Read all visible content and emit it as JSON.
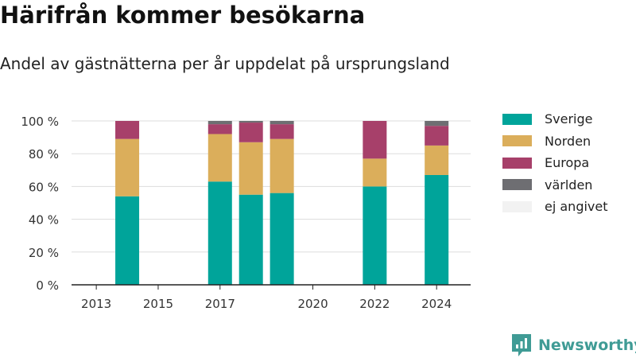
{
  "title": "Härifrån kommer besökarna",
  "subtitle": "Andel av gästnätterna per år uppdelat på ursprungsland",
  "brand": {
    "name": "Newsworthy",
    "logo_icon": "newsworthy-logo-icon"
  },
  "chart_data": {
    "type": "bar",
    "stacked": true,
    "title": "Härifrån kommer besökarna",
    "subtitle": "Andel av gästnätterna per år uppdelat på ursprungsland",
    "xlabel": "",
    "ylabel": "",
    "ylim": [
      0,
      100
    ],
    "xlim": [
      2012.2,
      2025.1
    ],
    "y_ticks": [
      0,
      20,
      40,
      60,
      80,
      100
    ],
    "y_tick_labels": [
      "0 %",
      "20 %",
      "40 %",
      "60 %",
      "80 %",
      "100 %"
    ],
    "x_ticks": [
      2013,
      2015,
      2017,
      2020,
      2022,
      2024
    ],
    "x_tick_labels": [
      "2013",
      "2015",
      "2017",
      "2020",
      "2022",
      "2024"
    ],
    "grid": true,
    "legend_position": "right",
    "x": [
      2014,
      2017,
      2018,
      2019,
      2022,
      2024
    ],
    "series": [
      {
        "name": "Sverige",
        "color": "#00a49a",
        "values": [
          54,
          63,
          55,
          56,
          60,
          67
        ]
      },
      {
        "name": "Norden",
        "color": "#dbae5b",
        "values": [
          35,
          29,
          32,
          33,
          17,
          18
        ]
      },
      {
        "name": "Europa",
        "color": "#a7406a",
        "values": [
          11,
          6,
          12,
          9,
          23,
          12
        ]
      },
      {
        "name": "världen",
        "color": "#6e6e72",
        "values": [
          0,
          2,
          1,
          2,
          0,
          3
        ]
      },
      {
        "name": "ej angivet",
        "color": "#f2f2f2",
        "values": [
          0,
          0,
          0,
          0,
          0,
          0
        ]
      }
    ]
  }
}
